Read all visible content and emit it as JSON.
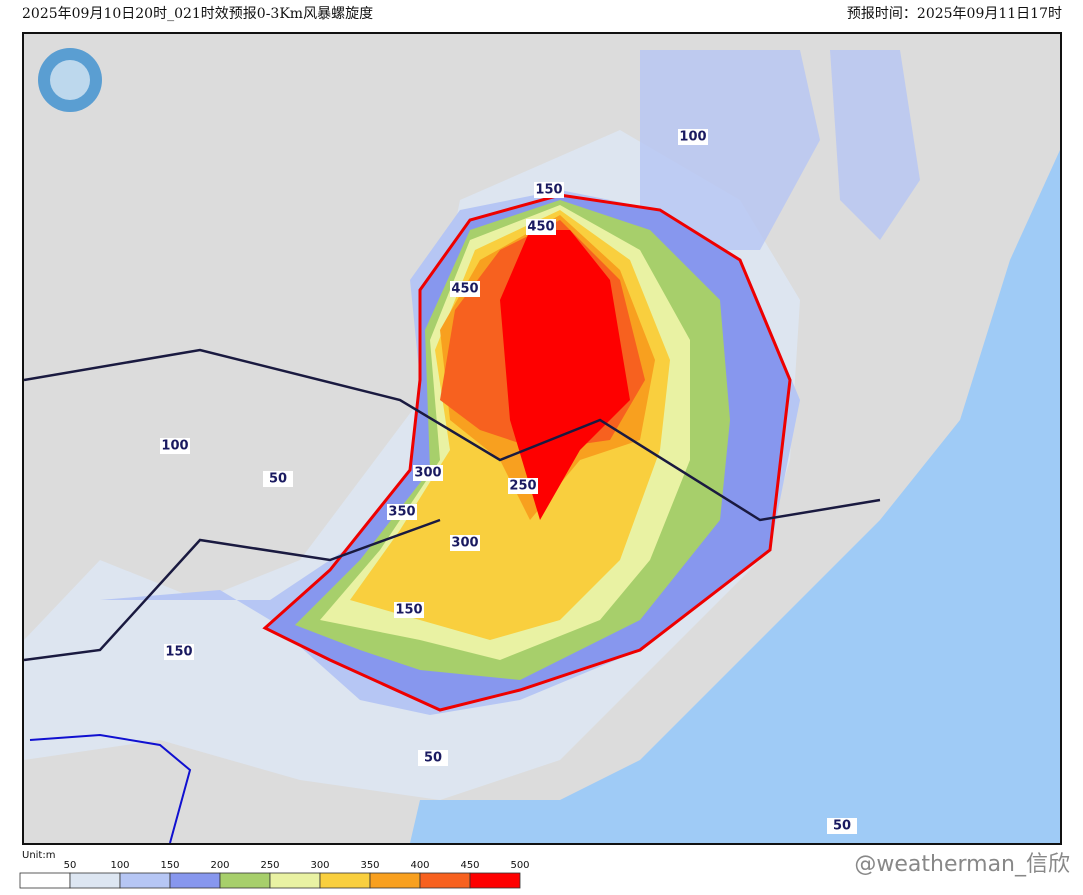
{
  "header": {
    "title": "2025年09月10日20时_021时效预报0-3Km风暴螺旋度",
    "forecast_time": "预报时间：2025年09月11日17时"
  },
  "map": {
    "contour_labels": [
      "100",
      "100",
      "50",
      "300",
      "250",
      "350",
      "300",
      "150",
      "150",
      "50",
      "50",
      "450",
      "450",
      "150"
    ]
  },
  "legend": {
    "unit": "Unit:m",
    "levels": [
      50,
      100,
      150,
      200,
      250,
      300,
      350,
      400,
      450,
      500
    ],
    "colors": [
      "#ffffff",
      "#dde6f2",
      "#b6c6f4",
      "#8797ee",
      "#a7cf6b",
      "#e9f2a3",
      "#f9cf3e",
      "#f8a01f",
      "#f7611f",
      "#fe0000"
    ]
  },
  "watermark": "@weatherman_信欣"
}
